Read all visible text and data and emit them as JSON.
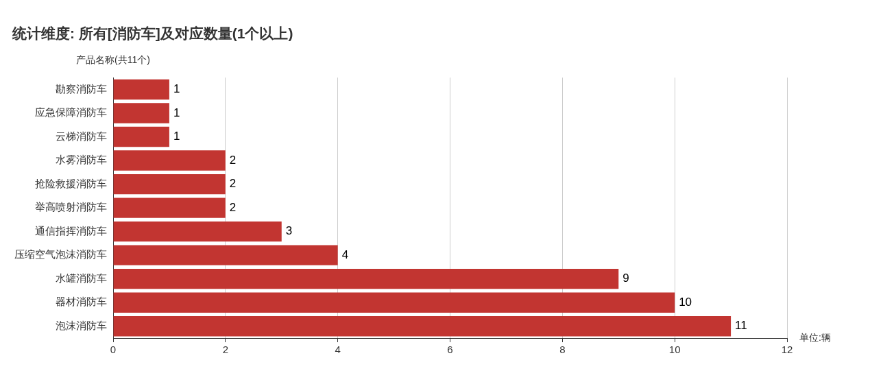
{
  "chart_data": {
    "type": "bar",
    "orientation": "horizontal",
    "title": "统计维度: 所有[消防车]及对应数量(1个以上)",
    "xlabel": "单位:辆",
    "ylabel": "产品名称(共11个)",
    "categories": [
      "勘察消防车",
      "应急保障消防车",
      "云梯消防车",
      "水雾消防车",
      "抢险救援消防车",
      "举高喷射消防车",
      "通信指挥消防车",
      "压缩空气泡沫消防车",
      "水罐消防车",
      "器材消防车",
      "泡沫消防车"
    ],
    "values": [
      1,
      1,
      1,
      2,
      2,
      2,
      3,
      4,
      9,
      10,
      11
    ],
    "color": "#c23531",
    "xlim": [
      0,
      12
    ],
    "xticks": [
      0,
      2,
      4,
      6,
      8,
      10,
      12
    ],
    "grid": "x",
    "data_labels": true
  }
}
